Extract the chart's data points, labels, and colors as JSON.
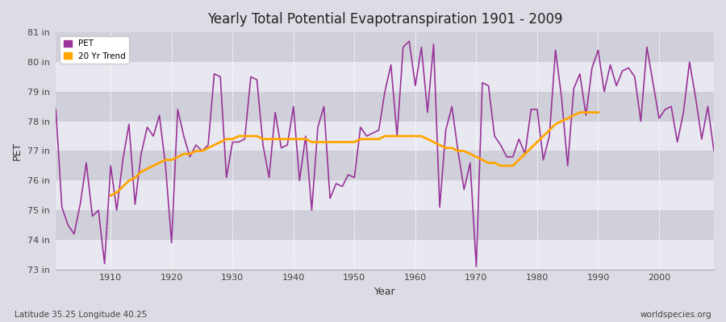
{
  "title": "Yearly Total Potential Evapotranspiration 1901 - 2009",
  "xlabel": "Year",
  "ylabel": "PET",
  "footnote_left": "Latitude 35.25 Longitude 40.25",
  "footnote_right": "worldspecies.org",
  "pet_color": "#993399",
  "trend_color": "#FFA500",
  "bg_color": "#dcdce4",
  "plot_bg_color": "#dcdce4",
  "band_light": "#e8e8f0",
  "band_dark": "#d0d0da",
  "ylim": [
    73,
    81
  ],
  "ytick_labels": [
    "73 in",
    "74 in",
    "75 in",
    "76 in",
    "77 in",
    "78 in",
    "79 in",
    "80 in",
    "81 in"
  ],
  "ytick_values": [
    73,
    74,
    75,
    76,
    77,
    78,
    79,
    80,
    81
  ],
  "years": [
    1901,
    1902,
    1903,
    1904,
    1905,
    1906,
    1907,
    1908,
    1909,
    1910,
    1911,
    1912,
    1913,
    1914,
    1915,
    1916,
    1917,
    1918,
    1919,
    1920,
    1921,
    1922,
    1923,
    1924,
    1925,
    1926,
    1927,
    1928,
    1929,
    1930,
    1931,
    1932,
    1933,
    1934,
    1935,
    1936,
    1937,
    1938,
    1939,
    1940,
    1941,
    1942,
    1943,
    1944,
    1945,
    1946,
    1947,
    1948,
    1949,
    1950,
    1951,
    1952,
    1953,
    1954,
    1955,
    1956,
    1957,
    1958,
    1959,
    1960,
    1961,
    1962,
    1963,
    1964,
    1965,
    1966,
    1967,
    1968,
    1969,
    1970,
    1971,
    1972,
    1973,
    1974,
    1975,
    1976,
    1977,
    1978,
    1979,
    1980,
    1981,
    1982,
    1983,
    1984,
    1985,
    1986,
    1987,
    1988,
    1989,
    1990,
    1991,
    1992,
    1993,
    1994,
    1995,
    1996,
    1997,
    1998,
    1999,
    2000,
    2001,
    2002,
    2003,
    2004,
    2005,
    2006,
    2007,
    2008,
    2009
  ],
  "pet_values": [
    78.4,
    75.1,
    74.5,
    74.2,
    75.2,
    76.6,
    74.8,
    75.0,
    73.2,
    76.5,
    75.0,
    76.7,
    77.9,
    75.2,
    76.9,
    77.8,
    77.5,
    78.2,
    76.5,
    73.9,
    78.4,
    77.5,
    76.8,
    77.2,
    77.0,
    77.2,
    79.6,
    79.5,
    76.1,
    77.3,
    77.3,
    77.4,
    79.5,
    79.4,
    77.2,
    76.1,
    78.3,
    77.1,
    77.2,
    78.5,
    76.0,
    77.5,
    75.0,
    77.8,
    78.5,
    75.4,
    75.9,
    75.8,
    76.2,
    76.1,
    77.8,
    77.5,
    77.6,
    77.7,
    79.0,
    79.9,
    77.5,
    80.5,
    80.7,
    79.2,
    80.5,
    78.3,
    80.6,
    75.1,
    77.7,
    78.5,
    77.0,
    75.7,
    76.6,
    73.1,
    79.3,
    79.2,
    77.5,
    77.2,
    76.8,
    76.8,
    77.4,
    76.9,
    78.4,
    78.4,
    76.7,
    77.5,
    80.4,
    78.8,
    76.5,
    79.1,
    79.6,
    78.2,
    79.8,
    80.4,
    79.0,
    79.9,
    79.2,
    79.7,
    79.8,
    79.5,
    78.0,
    80.5,
    79.3,
    78.1,
    78.4,
    78.5,
    77.3,
    78.3,
    80.0,
    78.8,
    77.4,
    78.5,
    77.0
  ],
  "trend_values": [
    null,
    null,
    null,
    null,
    null,
    null,
    null,
    null,
    null,
    75.5,
    75.6,
    75.8,
    76.0,
    76.1,
    76.3,
    76.4,
    76.5,
    76.6,
    76.7,
    76.7,
    76.8,
    76.9,
    76.9,
    77.0,
    77.0,
    77.1,
    77.2,
    77.3,
    77.4,
    77.4,
    77.5,
    77.5,
    77.5,
    77.5,
    77.4,
    77.4,
    77.4,
    77.4,
    77.4,
    77.4,
    77.4,
    77.4,
    77.3,
    77.3,
    77.3,
    77.3,
    77.3,
    77.3,
    77.3,
    77.3,
    77.4,
    77.4,
    77.4,
    77.4,
    77.5,
    77.5,
    77.5,
    77.5,
    77.5,
    77.5,
    77.5,
    77.4,
    77.3,
    77.2,
    77.1,
    77.1,
    77.0,
    77.0,
    76.9,
    76.8,
    76.7,
    76.6,
    76.6,
    76.5,
    76.5,
    76.5,
    76.7,
    76.9,
    77.1,
    77.3,
    77.5,
    77.7,
    77.9,
    78.0,
    78.1,
    78.2,
    78.3,
    78.3,
    78.3,
    78.3,
    null,
    null,
    null,
    null,
    null,
    null,
    null,
    null,
    null,
    null,
    null,
    null,
    null,
    null,
    null,
    null,
    null,
    null,
    null
  ]
}
